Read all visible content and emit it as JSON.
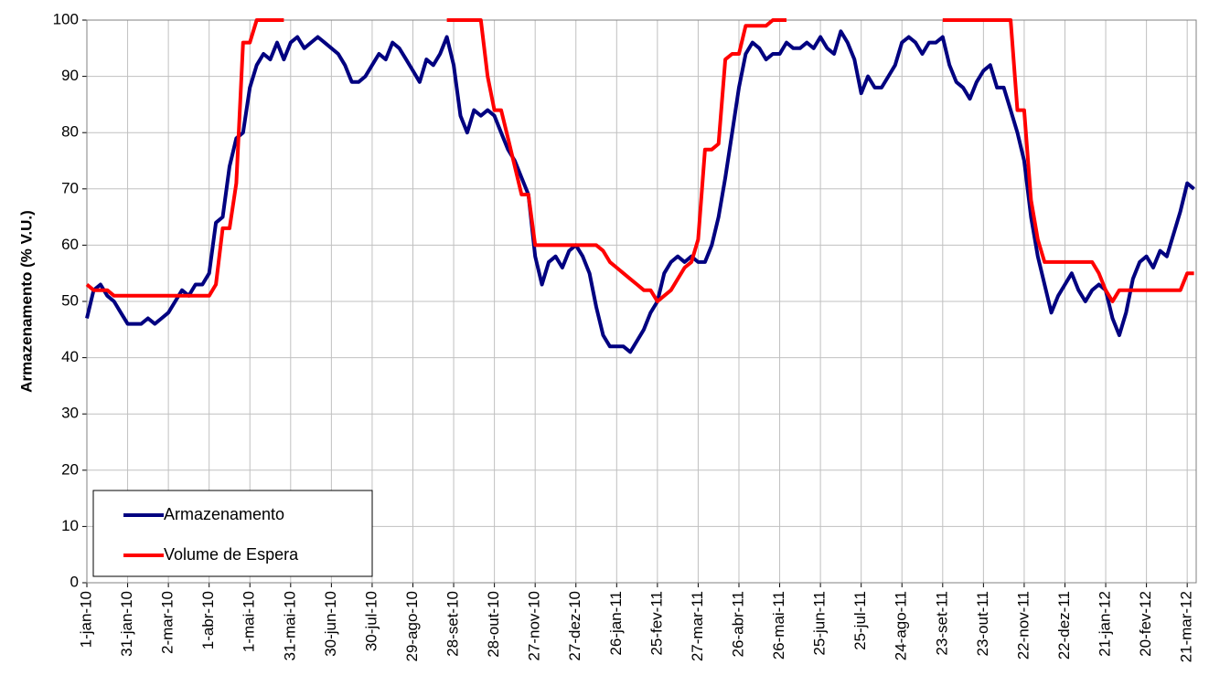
{
  "chart_data": {
    "type": "line",
    "y_label": "Armazenamento (% V.U.)",
    "categories": [
      "1-jan-10",
      null,
      null,
      null,
      null,
      null,
      "31-jan-10",
      null,
      null,
      null,
      null,
      null,
      "2-mar-10",
      null,
      null,
      null,
      null,
      null,
      "1-abr-10",
      null,
      null,
      null,
      null,
      null,
      "1-mai-10",
      null,
      null,
      null,
      null,
      null,
      "31-mai-10",
      null,
      null,
      null,
      null,
      null,
      "30-jun-10",
      null,
      null,
      null,
      null,
      null,
      "30-jul-10",
      null,
      null,
      null,
      null,
      null,
      "29-ago-10",
      null,
      null,
      null,
      null,
      null,
      "28-set-10",
      null,
      null,
      null,
      null,
      null,
      "28-out-10",
      null,
      null,
      null,
      null,
      null,
      "27-nov-10",
      null,
      null,
      null,
      null,
      null,
      "27-dez-10",
      null,
      null,
      null,
      null,
      null,
      "26-jan-11",
      null,
      null,
      null,
      null,
      null,
      "25-fev-11",
      null,
      null,
      null,
      null,
      null,
      "27-mar-11",
      null,
      null,
      null,
      null,
      null,
      "26-abr-11",
      null,
      null,
      null,
      null,
      null,
      "26-mai-11",
      null,
      null,
      null,
      null,
      null,
      "25-jun-11",
      null,
      null,
      null,
      null,
      null,
      "25-jul-11",
      null,
      null,
      null,
      null,
      null,
      "24-ago-11",
      null,
      null,
      null,
      null,
      null,
      "23-set-11",
      null,
      null,
      null,
      null,
      null,
      "23-out-11",
      null,
      null,
      null,
      null,
      null,
      "22-nov-11",
      null,
      null,
      null,
      null,
      null,
      "22-dez-11",
      null,
      null,
      null,
      null,
      null,
      "21-jan-12",
      null,
      null,
      null,
      null,
      null,
      "20-fev-12",
      null,
      null,
      null,
      null,
      null,
      "21-mar-12",
      null
    ],
    "series": [
      {
        "name": "Armazenamento",
        "color": "#000080",
        "values": [
          47,
          52,
          53,
          51,
          50,
          48,
          46,
          46,
          46,
          47,
          46,
          47,
          48,
          50,
          52,
          51,
          53,
          53,
          55,
          64,
          65,
          74,
          79,
          80,
          88,
          92,
          94,
          93,
          96,
          93,
          96,
          97,
          95,
          96,
          97,
          96,
          95,
          94,
          92,
          89,
          89,
          90,
          92,
          94,
          93,
          96,
          95,
          93,
          91,
          89,
          93,
          92,
          94,
          97,
          92,
          83,
          80,
          84,
          83,
          84,
          83,
          80,
          77,
          75,
          72,
          69,
          58,
          53,
          57,
          58,
          56,
          59,
          60,
          58,
          55,
          49,
          44,
          42,
          42,
          42,
          41,
          43,
          45,
          48,
          50,
          55,
          57,
          58,
          57,
          58,
          57,
          57,
          60,
          65,
          72,
          80,
          88,
          94,
          96,
          95,
          93,
          94,
          94,
          96,
          95,
          95,
          96,
          95,
          97,
          95,
          94,
          98,
          96,
          93,
          87,
          90,
          88,
          88,
          90,
          92,
          96,
          97,
          96,
          94,
          96,
          96,
          97,
          92,
          89,
          88,
          86,
          89,
          91,
          92,
          88,
          88,
          84,
          80,
          75,
          65,
          58,
          53,
          48,
          51,
          53,
          55,
          52,
          50,
          52,
          53,
          52,
          47,
          44,
          48,
          54,
          57,
          58,
          56,
          59,
          58,
          62,
          66,
          71,
          70
        ]
      },
      {
        "name": "Volume de Espera",
        "color": "#ff0000",
        "values": [
          53,
          52,
          52,
          52,
          51,
          51,
          51,
          51,
          51,
          51,
          51,
          51,
          51,
          51,
          51,
          51,
          51,
          51,
          51,
          53,
          63,
          63,
          71,
          96,
          96,
          100,
          100,
          100,
          100,
          100,
          null,
          null,
          null,
          null,
          null,
          null,
          null,
          null,
          null,
          null,
          null,
          null,
          null,
          null,
          null,
          null,
          null,
          null,
          null,
          null,
          null,
          null,
          null,
          100,
          100,
          100,
          100,
          100,
          100,
          90,
          84,
          84,
          79,
          74,
          69,
          69,
          60,
          60,
          60,
          60,
          60,
          60,
          60,
          60,
          60,
          60,
          59,
          57,
          56,
          55,
          54,
          53,
          52,
          52,
          50,
          51,
          52,
          54,
          56,
          57,
          61,
          77,
          77,
          78,
          93,
          94,
          94,
          99,
          99,
          99,
          99,
          100,
          100,
          100,
          null,
          null,
          null,
          null,
          null,
          null,
          null,
          null,
          null,
          null,
          null,
          null,
          null,
          null,
          null,
          null,
          null,
          null,
          null,
          null,
          null,
          null,
          100,
          100,
          100,
          100,
          100,
          100,
          100,
          100,
          100,
          100,
          100,
          84,
          84,
          68,
          61,
          57,
          57,
          57,
          57,
          57,
          57,
          57,
          57,
          55,
          52,
          50,
          52,
          52,
          52,
          52,
          52,
          52,
          52,
          52,
          52,
          52,
          55,
          55
        ]
      }
    ],
    "ylim": [
      0,
      100
    ],
    "yticks": [
      0,
      10,
      20,
      30,
      40,
      50,
      60,
      70,
      80,
      90,
      100
    ],
    "grid": true,
    "legend": "lower left"
  }
}
